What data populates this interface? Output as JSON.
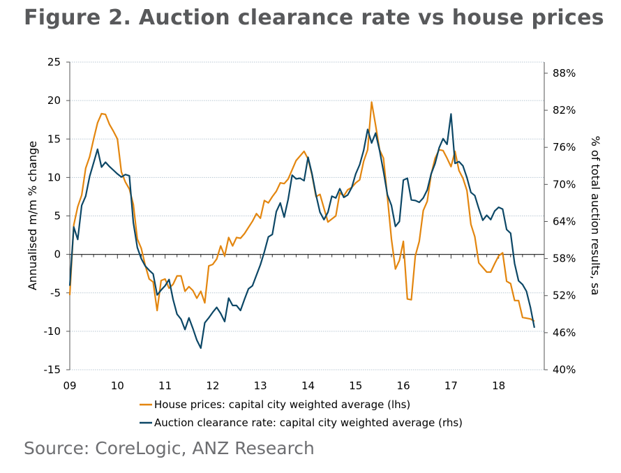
{
  "title": "Figure 2. Auction clearance rate vs house prices",
  "source": "Source: CoreLogic, ANZ Research",
  "chart_data": {
    "type": "line",
    "title": "Figure 2. Auction clearance rate vs house prices",
    "ylabel": "Annualised m/m % change",
    "ylabel_right": "% of total auction results, sa",
    "ylim": [
      -15,
      25
    ],
    "ylim_right": [
      40,
      89.8
    ],
    "yticks": [
      "25",
      "20",
      "15",
      "10",
      "5",
      "0",
      "-5",
      "-10",
      "-15"
    ],
    "yticks_right": [
      "88%",
      "82%",
      "76%",
      "70%",
      "64%",
      "58%",
      "52%",
      "46%",
      "40%"
    ],
    "xticks": [
      "09",
      "10",
      "11",
      "12",
      "13",
      "14",
      "15",
      "16",
      "17",
      "18"
    ],
    "grid": true,
    "legend_position": "bottom",
    "colors": {
      "house_prices": "#e3860f",
      "clearance": "#0c4766"
    },
    "x": [
      "2009-01",
      "2009-02",
      "2009-03",
      "2009-04",
      "2009-05",
      "2009-06",
      "2009-07",
      "2009-08",
      "2009-09",
      "2009-10",
      "2009-11",
      "2009-12",
      "2010-01",
      "2010-02",
      "2010-03",
      "2010-04",
      "2010-05",
      "2010-06",
      "2010-07",
      "2010-08",
      "2010-09",
      "2010-10",
      "2010-11",
      "2010-12",
      "2011-01",
      "2011-02",
      "2011-03",
      "2011-04",
      "2011-05",
      "2011-06",
      "2011-07",
      "2011-08",
      "2011-09",
      "2011-10",
      "2011-11",
      "2011-12",
      "2012-01",
      "2012-02",
      "2012-03",
      "2012-04",
      "2012-05",
      "2012-06",
      "2012-07",
      "2012-08",
      "2012-09",
      "2012-10",
      "2012-11",
      "2012-12",
      "2013-01",
      "2013-02",
      "2013-03",
      "2013-04",
      "2013-05",
      "2013-06",
      "2013-07",
      "2013-08",
      "2013-09",
      "2013-10",
      "2013-11",
      "2013-12",
      "2014-01",
      "2014-02",
      "2014-03",
      "2014-04",
      "2014-05",
      "2014-06",
      "2014-07",
      "2014-08",
      "2014-09",
      "2014-10",
      "2014-11",
      "2014-12",
      "2015-01",
      "2015-02",
      "2015-03",
      "2015-04",
      "2015-05",
      "2015-06",
      "2015-07",
      "2015-08",
      "2015-09",
      "2015-10",
      "2015-11",
      "2015-12",
      "2016-01",
      "2016-02",
      "2016-03",
      "2016-04",
      "2016-05",
      "2016-06",
      "2016-07",
      "2016-08",
      "2016-09",
      "2016-10",
      "2016-11",
      "2016-12",
      "2017-01",
      "2017-02",
      "2017-03",
      "2017-04",
      "2017-05",
      "2017-06",
      "2017-07",
      "2017-08",
      "2017-09",
      "2017-10",
      "2017-11",
      "2017-12",
      "2018-01",
      "2018-02",
      "2018-03",
      "2018-04",
      "2018-05",
      "2018-06",
      "2018-07",
      "2018-08",
      "2018-09",
      "2018-10"
    ],
    "series": [
      {
        "name": "House prices: capital city weighted average (lhs)",
        "axis": "left",
        "values": [
          -5.3,
          3.8,
          6.2,
          7.7,
          11.2,
          12.7,
          15,
          17.1,
          18.3,
          18.2,
          16.9,
          16,
          15,
          10.7,
          9.4,
          8.5,
          6.5,
          2,
          0.8,
          -1.4,
          -3.2,
          -3.6,
          -7.3,
          -3.4,
          -3.2,
          -4.4,
          -3.9,
          -2.8,
          -2.8,
          -4.8,
          -4.2,
          -4.7,
          -5.7,
          -4.8,
          -6.3,
          -1.5,
          -1.3,
          -0.6,
          1.1,
          -0.2,
          2.2,
          1.1,
          2.2,
          2.1,
          2.7,
          3.5,
          4.3,
          5.3,
          4.7,
          7.0,
          6.7,
          7.5,
          8.2,
          9.3,
          9.2,
          9.8,
          11.0,
          12.2,
          12.8,
          13.4,
          12.4,
          10.3,
          7.5,
          7.8,
          6.0,
          4.2,
          4.6,
          5.0,
          8.0,
          7.6,
          8.4,
          8.7,
          9.3,
          9.7,
          12.1,
          13.6,
          19.8,
          16.8,
          13.6,
          12.5,
          7.4,
          2.0,
          -1.9,
          -0.8,
          1.7,
          -5.8,
          -5.9,
          -0.2,
          1.7,
          5.7,
          6.9,
          10.4,
          12.5,
          13.6,
          13.5,
          12.5,
          11.4,
          13.4,
          10.9,
          9.9,
          8.3,
          3.9,
          2.3,
          -1.1,
          -1.7,
          -2.3,
          -2.3,
          -1.2,
          -0.2,
          0.2,
          -3.5,
          -3.8,
          -6.0,
          -6.0,
          -8.2,
          -8.3,
          -8.4,
          -8.7
        ]
      },
      {
        "name": "Auction clearance rate: capital city weighted average (rhs)",
        "axis": "right",
        "values": [
          53.6,
          63.1,
          61.1,
          66.6,
          68.1,
          71.3,
          73.5,
          75.7,
          72.8,
          73.6,
          72.9,
          72.3,
          71.7,
          71.2,
          71.6,
          71.4,
          63.8,
          59.8,
          58.0,
          56.8,
          56.1,
          55.5,
          52.1,
          52.9,
          53.6,
          54.6,
          51.4,
          49.0,
          48.2,
          46.5,
          48.4,
          46.7,
          44.8,
          43.5,
          47.6,
          48.4,
          49.3,
          50.1,
          49.1,
          47.8,
          51.6,
          50.4,
          50.4,
          49.6,
          51.4,
          53.1,
          53.6,
          55.3,
          57.0,
          59.1,
          61.5,
          61.9,
          65.6,
          67.0,
          64.7,
          67.6,
          71.5,
          70.9,
          71.0,
          70.6,
          74.4,
          71.7,
          68.3,
          65.5,
          64.3,
          65.5,
          68.1,
          67.8,
          69.3,
          67.9,
          68.3,
          69.5,
          71.7,
          73.2,
          75.5,
          78.9,
          76.7,
          78.3,
          75.5,
          72.1,
          68.3,
          66.6,
          63.2,
          64.0,
          70.7,
          71.0,
          67.5,
          67.4,
          67.1,
          67.8,
          69.1,
          71.7,
          73.4,
          75.9,
          77.4,
          76.5,
          81.4,
          73.4,
          73.7,
          73.0,
          71.1,
          68.7,
          68.2,
          66.1,
          64.2,
          65.0,
          64.3,
          65.7,
          66.3,
          66.0,
          62.7,
          62.1,
          57.2,
          54.4,
          53.8,
          52.7,
          50.1,
          46.8
        ]
      }
    ]
  }
}
